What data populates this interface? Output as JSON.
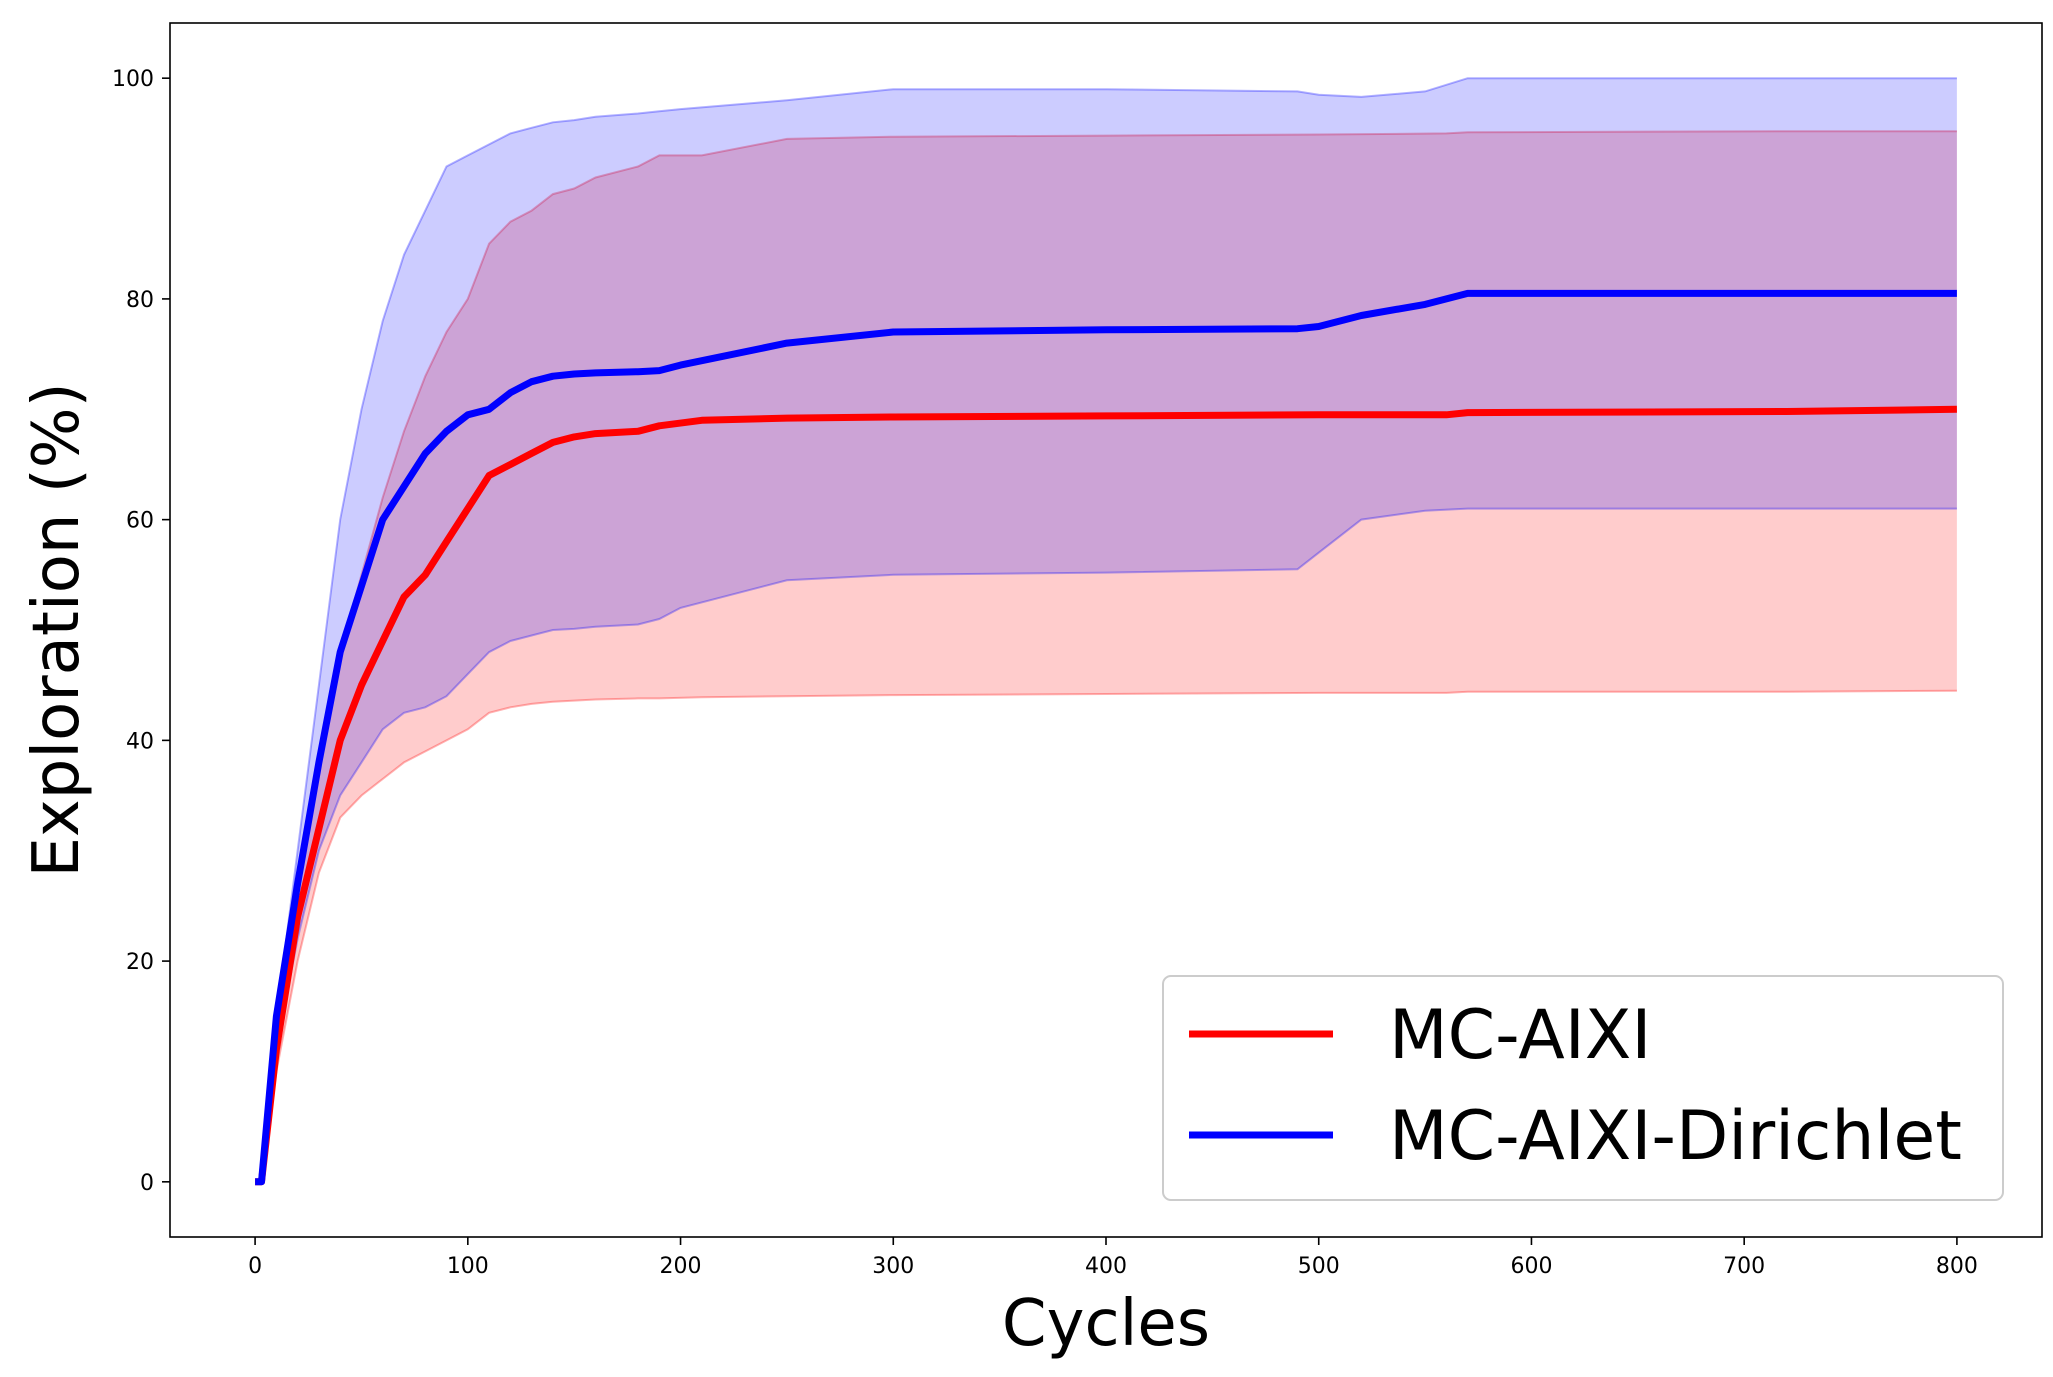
{
  "chart_data": {
    "type": "line",
    "title": "",
    "xlabel": "Cycles",
    "ylabel": "Exploration (%)",
    "xlim": [
      -40,
      840
    ],
    "ylim": [
      -5,
      105
    ],
    "xticks": [
      0,
      100,
      200,
      300,
      400,
      500,
      600,
      700,
      800
    ],
    "yticks": [
      0,
      20,
      40,
      60,
      80,
      100
    ],
    "grid": false,
    "legend_position": "lower-right",
    "series": [
      {
        "name": "MC-AIXI",
        "color": "#ff0000",
        "band_fill": "#ff0000",
        "band_opacity": 0.2,
        "x": [
          0,
          3,
          10,
          20,
          30,
          40,
          50,
          60,
          70,
          80,
          90,
          100,
          110,
          120,
          130,
          140,
          150,
          160,
          180,
          190,
          210,
          250,
          300,
          400,
          500,
          560,
          570,
          720,
          800
        ],
        "mean": [
          0,
          0,
          12,
          24,
          32,
          40,
          45,
          49,
          53,
          55,
          58,
          61,
          64,
          65,
          66,
          67,
          67.5,
          67.8,
          68,
          68.5,
          69,
          69.2,
          69.3,
          69.4,
          69.5,
          69.5,
          69.7,
          69.8,
          70
        ],
        "upper": [
          0,
          0,
          12,
          26,
          38,
          48,
          55,
          62,
          68,
          73,
          77,
          80,
          85,
          87,
          88,
          89.5,
          90,
          91,
          92,
          93,
          93,
          94.5,
          94.7,
          94.8,
          94.9,
          95,
          95.1,
          95.2,
          95.2
        ],
        "lower": [
          0,
          0,
          10,
          20,
          28,
          33,
          35,
          36.5,
          38,
          39,
          40,
          41,
          42.5,
          43,
          43.3,
          43.5,
          43.6,
          43.7,
          43.8,
          43.8,
          43.9,
          44,
          44.1,
          44.2,
          44.3,
          44.3,
          44.4,
          44.4,
          44.5
        ]
      },
      {
        "name": "MC-AIXI-Dirichlet",
        "color": "#0000ff",
        "band_fill": "#0000ff",
        "band_opacity": 0.2,
        "x": [
          0,
          3,
          10,
          20,
          30,
          40,
          50,
          60,
          70,
          80,
          90,
          100,
          110,
          120,
          130,
          140,
          150,
          160,
          180,
          190,
          200,
          250,
          300,
          400,
          490,
          500,
          520,
          550,
          570,
          800
        ],
        "mean": [
          0,
          0,
          15,
          27,
          38,
          48,
          54,
          60,
          63,
          66,
          68,
          69.5,
          70,
          71.5,
          72.5,
          73,
          73.2,
          73.3,
          73.4,
          73.5,
          74,
          76,
          77,
          77.2,
          77.3,
          77.5,
          78.5,
          79.5,
          80.5,
          80.5
        ],
        "upper": [
          0,
          0,
          15,
          30,
          45,
          60,
          70,
          78,
          84,
          88,
          92,
          93,
          94,
          95,
          95.5,
          96,
          96.2,
          96.5,
          96.8,
          97,
          97.2,
          98,
          99,
          99,
          98.8,
          98.5,
          98.3,
          98.8,
          100,
          100
        ],
        "lower": [
          0,
          0,
          12,
          22,
          30,
          35,
          38,
          41,
          42.5,
          43,
          44,
          46,
          48,
          49,
          49.5,
          50,
          50.1,
          50.3,
          50.5,
          51,
          52,
          54.5,
          55,
          55.2,
          55.5,
          57,
          60,
          60.8,
          61,
          61
        ]
      }
    ]
  }
}
